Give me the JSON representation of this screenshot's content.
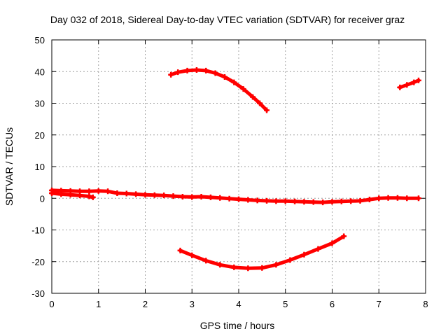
{
  "chart_data": {
    "type": "scatter",
    "title": "Day 032 of 2018, Sidereal Day-to-day VTEC variation (SDTVAR) for receiver graz",
    "xlabel": "GPS time / hours",
    "ylabel": "SDTVAR / TECUs",
    "xlim": [
      0,
      8
    ],
    "ylim": [
      -30,
      50
    ],
    "xticks": [
      0,
      1,
      2,
      3,
      4,
      5,
      6,
      7,
      8
    ],
    "yticks": [
      -30,
      -20,
      -10,
      0,
      10,
      20,
      30,
      40,
      50
    ],
    "grid": true,
    "color": "#ff0000",
    "series": [
      {
        "values": [
          [
            0.0,
            2.5
          ],
          [
            0.2,
            2.4
          ],
          [
            0.4,
            2.3
          ],
          [
            0.6,
            2.2
          ],
          [
            0.8,
            2.2
          ],
          [
            1.0,
            2.3
          ],
          [
            1.2,
            2.2
          ],
          [
            1.4,
            1.6
          ],
          [
            1.6,
            1.5
          ],
          [
            1.8,
            1.3
          ],
          [
            2.0,
            1.1
          ],
          [
            2.2,
            1.0
          ],
          [
            2.4,
            0.9
          ],
          [
            2.6,
            0.7
          ],
          [
            2.8,
            0.5
          ],
          [
            3.0,
            0.4
          ],
          [
            3.2,
            0.5
          ],
          [
            3.4,
            0.3
          ],
          [
            3.6,
            0.1
          ],
          [
            3.8,
            -0.1
          ],
          [
            4.0,
            -0.3
          ],
          [
            4.2,
            -0.5
          ],
          [
            4.4,
            -0.7
          ],
          [
            4.6,
            -0.8
          ],
          [
            4.8,
            -0.9
          ],
          [
            5.0,
            -0.9
          ],
          [
            5.2,
            -1.0
          ],
          [
            5.4,
            -1.1
          ],
          [
            5.6,
            -1.2
          ],
          [
            5.8,
            -1.3
          ],
          [
            6.0,
            -1.1
          ],
          [
            6.2,
            -1.0
          ],
          [
            6.4,
            -0.9
          ],
          [
            6.6,
            -0.8
          ],
          [
            6.8,
            -0.4
          ],
          [
            7.0,
            0.0
          ],
          [
            7.2,
            0.1
          ],
          [
            7.4,
            0.1
          ],
          [
            7.6,
            0.0
          ],
          [
            7.85,
            0.0
          ]
        ]
      },
      {
        "values": [
          [
            0.0,
            1.6
          ],
          [
            0.2,
            1.3
          ],
          [
            0.4,
            1.1
          ],
          [
            0.6,
            0.9
          ],
          [
            0.8,
            0.6
          ],
          [
            0.88,
            0.3
          ]
        ]
      },
      {
        "values": [
          [
            2.55,
            39.0
          ],
          [
            2.7,
            39.8
          ],
          [
            2.9,
            40.3
          ],
          [
            3.1,
            40.5
          ],
          [
            3.3,
            40.3
          ],
          [
            3.5,
            39.5
          ],
          [
            3.7,
            38.3
          ],
          [
            3.9,
            36.6
          ],
          [
            4.1,
            34.5
          ],
          [
            4.3,
            32.0
          ],
          [
            4.45,
            30.0
          ],
          [
            4.6,
            27.8
          ]
        ]
      },
      {
        "values": [
          [
            2.75,
            -16.5
          ],
          [
            3.0,
            -18.0
          ],
          [
            3.3,
            -19.7
          ],
          [
            3.6,
            -21.0
          ],
          [
            3.9,
            -21.8
          ],
          [
            4.2,
            -22.1
          ],
          [
            4.5,
            -22.0
          ],
          [
            4.8,
            -21.0
          ],
          [
            5.1,
            -19.5
          ],
          [
            5.4,
            -17.8
          ],
          [
            5.7,
            -16.0
          ],
          [
            6.0,
            -14.2
          ],
          [
            6.25,
            -12.0
          ]
        ]
      },
      {
        "values": [
          [
            7.45,
            35.0
          ],
          [
            7.6,
            35.8
          ],
          [
            7.75,
            36.6
          ],
          [
            7.85,
            37.2
          ]
        ]
      }
    ]
  }
}
